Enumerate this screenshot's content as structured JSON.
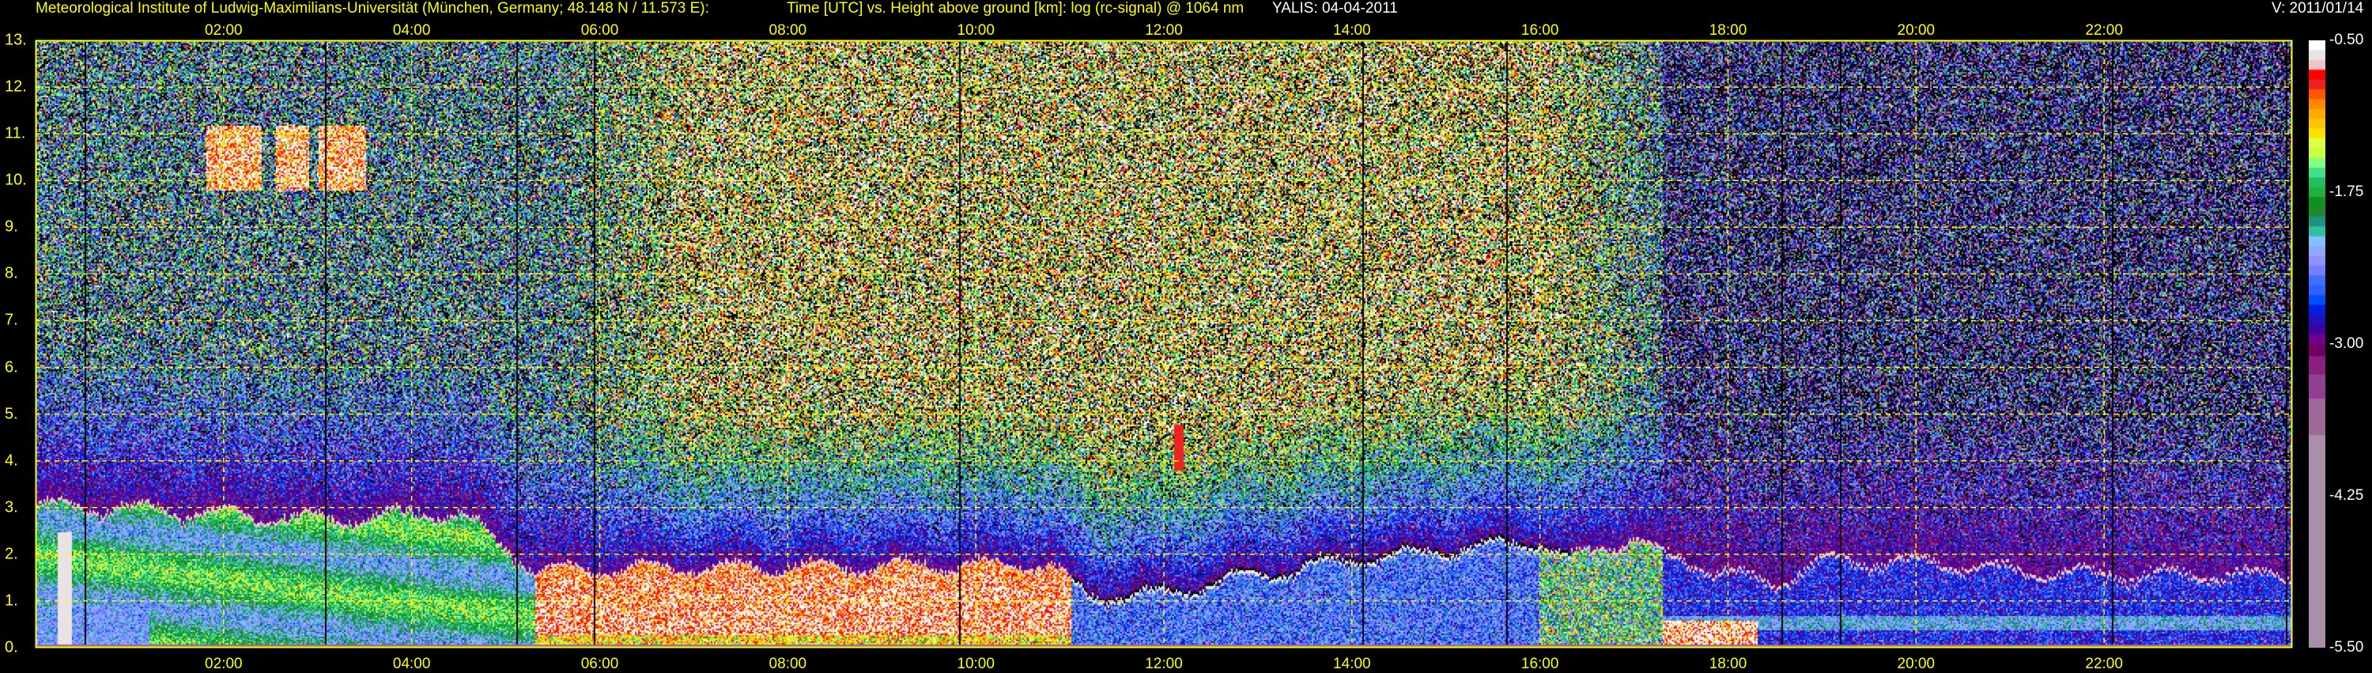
{
  "header": {
    "institute": "Meteorological Institute of Ludwig-Maximilians-Universität (München, Germany; 48.148 N / 11.573 E):",
    "description": "Time [UTC] vs. Height above ground [km]: log (rc-signal) @ 1064 nm",
    "instrument_date": "YALIS: 04-04-2011",
    "version": "V: 2011/01/14"
  },
  "chart_data": {
    "type": "heatmap",
    "title": "Time [UTC] vs. Height above ground [km]: log (rc-signal) @ 1064 nm",
    "xlabel": "Time [UTC]",
    "ylabel": "Height above ground [km]",
    "xlim": [
      0,
      24
    ],
    "ylim": [
      0,
      13
    ],
    "grid": true,
    "x_ticks": [
      {
        "value": 2,
        "label": "02:00"
      },
      {
        "value": 4,
        "label": "04:00"
      },
      {
        "value": 6,
        "label": "06:00"
      },
      {
        "value": 8,
        "label": "08:00"
      },
      {
        "value": 10,
        "label": "10:00"
      },
      {
        "value": 12,
        "label": "12:00"
      },
      {
        "value": 14,
        "label": "14:00"
      },
      {
        "value": 16,
        "label": "16:00"
      },
      {
        "value": 18,
        "label": "18:00"
      },
      {
        "value": 20,
        "label": "20:00"
      },
      {
        "value": 22,
        "label": "22:00"
      }
    ],
    "y_ticks": [
      {
        "value": 0,
        "label": "0."
      },
      {
        "value": 1,
        "label": "1."
      },
      {
        "value": 2,
        "label": "2."
      },
      {
        "value": 3,
        "label": "3."
      },
      {
        "value": 4,
        "label": "4."
      },
      {
        "value": 5,
        "label": "5."
      },
      {
        "value": 6,
        "label": "6."
      },
      {
        "value": 7,
        "label": "7."
      },
      {
        "value": 8,
        "label": "8."
      },
      {
        "value": 9,
        "label": "9."
      },
      {
        "value": 10,
        "label": "10."
      },
      {
        "value": 11,
        "label": "11."
      },
      {
        "value": 12,
        "label": "12."
      },
      {
        "value": 13,
        "label": "13."
      }
    ],
    "colorbar": {
      "range": [
        -5.5,
        -0.5
      ],
      "ticks": [
        {
          "value": -0.5,
          "label": "-0.50"
        },
        {
          "value": -1.75,
          "label": "-1.75"
        },
        {
          "value": -3.0,
          "label": "-3.00"
        },
        {
          "value": -4.25,
          "label": "-4.25"
        },
        {
          "value": -5.5,
          "label": "-5.50"
        }
      ],
      "colors_high_to_low": [
        "#ffffff",
        "#ebe3e3",
        "#efc4c4",
        "#ff0000",
        "#ee2222",
        "#ff5500",
        "#ff8800",
        "#ffaa00",
        "#ffc400",
        "#ffe000",
        "#ddff44",
        "#c8ff40",
        "#80ff80",
        "#40e090",
        "#20c060",
        "#20b040",
        "#109020",
        "#208830",
        "#209080",
        "#30c0a0",
        "#80c0ff",
        "#90a8ff",
        "#9090ff",
        "#7080ff",
        "#4070ff",
        "#3060ff",
        "#0050ff",
        "#0020e0",
        "#2010c0",
        "#4000a0",
        "#700090"
      ],
      "tail_stops": [
        {
          "color": "#700060",
          "from": -3.1,
          "to": -3.0
        },
        {
          "color": "#882080",
          "from": -3.25,
          "to": -3.1
        },
        {
          "color": "#904090",
          "from": -3.45,
          "to": -3.25
        },
        {
          "color": "#a06898",
          "from": -3.75,
          "to": -3.45
        },
        {
          "color": "#a890aa",
          "from": -5.5,
          "to": -3.75
        }
      ]
    },
    "features": {
      "boundary_layer_top_km": [
        [
          0,
          3.1
        ],
        [
          1,
          3.0
        ],
        [
          3,
          2.8
        ],
        [
          4.5,
          2.9
        ],
        [
          5.3,
          1.7
        ],
        [
          10.8,
          1.8
        ],
        [
          11.2,
          1.1
        ],
        [
          12,
          1.2
        ],
        [
          13,
          1.6
        ],
        [
          14,
          1.9
        ],
        [
          15,
          2.1
        ],
        [
          16,
          2.3
        ],
        [
          16.3,
          1.9
        ],
        [
          17,
          2.4
        ],
        [
          17.3,
          2.0
        ],
        [
          18.5,
          1.4
        ],
        [
          19,
          1.9
        ],
        [
          20,
          1.9
        ],
        [
          21,
          1.7
        ],
        [
          22,
          1.6
        ],
        [
          24,
          1.6
        ]
      ],
      "cirrus": {
        "time_range": [
          1.8,
          3.5
        ],
        "height_range_km": [
          9.8,
          11.2
        ]
      }
    },
    "grid_color": "#ffff00",
    "axis_color": "#ffff00"
  }
}
